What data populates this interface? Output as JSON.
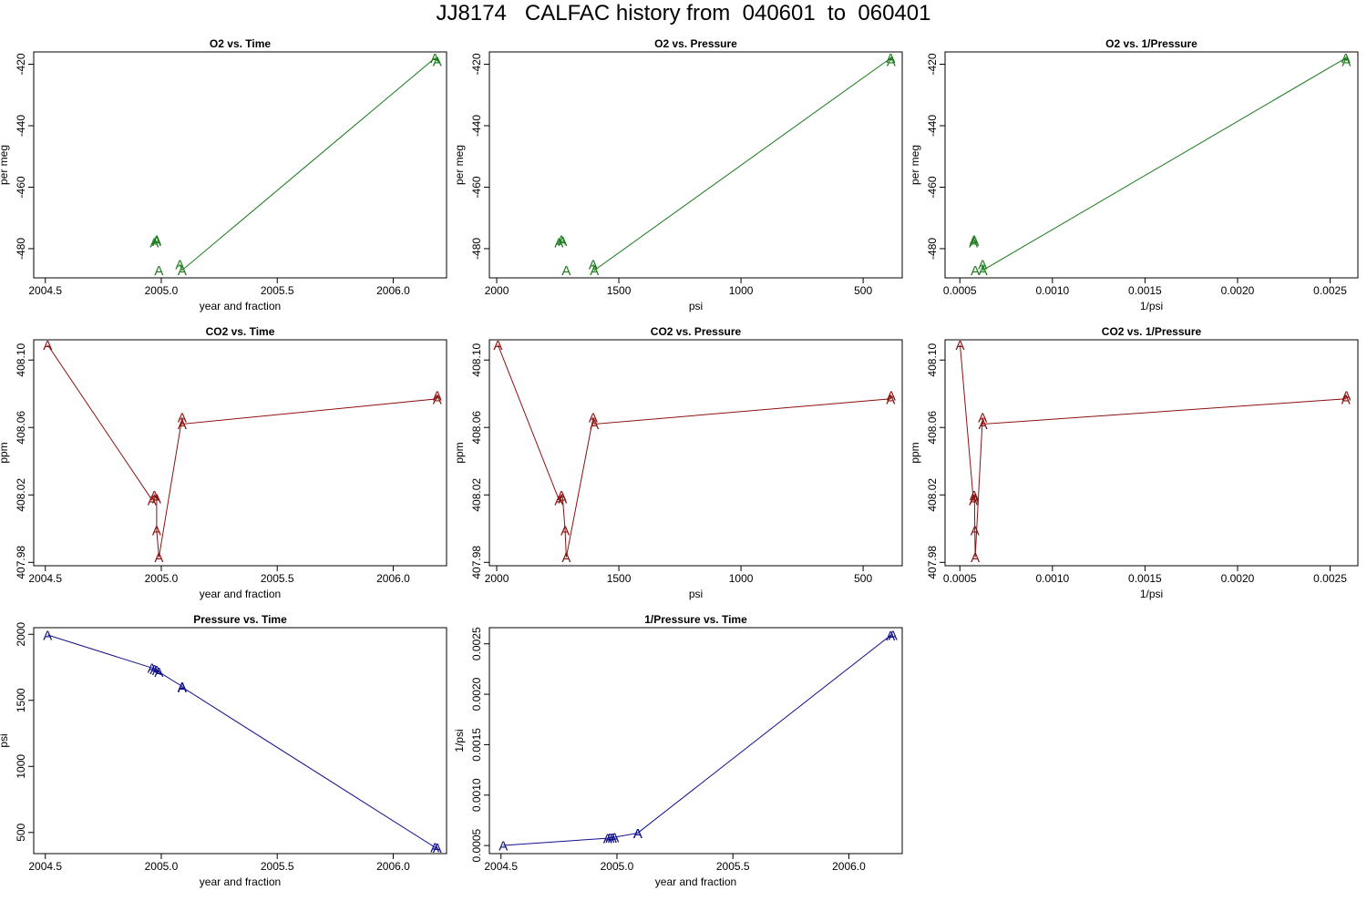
{
  "title": "JJ8174   CALFAC history from  040601  to  060401",
  "colors": {
    "o2": "#1a7a1a",
    "co2": "#8b1010",
    "pressure": "#10108b",
    "axis": "#000000"
  },
  "chart_data": [
    {
      "type": "line",
      "title": "O2 vs. Time",
      "xlabel": "year and fraction",
      "ylabel": "per meg",
      "color_key": "o2",
      "marker": "A",
      "x": [
        2004.97,
        2004.98,
        2004.98,
        2004.99,
        2005.08,
        2005.09,
        2006.18,
        2006.19
      ],
      "y": [
        -478,
        -477,
        -477.5,
        -487,
        -485,
        -487,
        -418,
        -419
      ],
      "xlim": [
        2004.45,
        2006.23
      ],
      "ylim": [
        -489.5,
        -416
      ],
      "xticks": [
        {
          "v": 2004.5,
          "label": "2004.5"
        },
        {
          "v": 2005.0,
          "label": "2005.0"
        },
        {
          "v": 2005.5,
          "label": "2005.5"
        },
        {
          "v": 2006.0,
          "label": "2006.0"
        }
      ],
      "yticks": [
        {
          "v": -420,
          "label": "-420"
        },
        {
          "v": -440,
          "label": "-440"
        },
        {
          "v": -460,
          "label": "-460"
        },
        {
          "v": -480,
          "label": "-480"
        }
      ],
      "line_from": 5
    },
    {
      "type": "line",
      "title": "O2 vs. Pressure",
      "xlabel": "psi",
      "ylabel": "per meg",
      "color_key": "o2",
      "marker": "A",
      "x": [
        1745,
        1735,
        1730,
        1715,
        1605,
        1600,
        387,
        385
      ],
      "y": [
        -478,
        -477,
        -477.5,
        -487,
        -485,
        -487,
        -418,
        -419
      ],
      "xlim": [
        2030,
        340
      ],
      "ylim": [
        -489.5,
        -416
      ],
      "xticks": [
        {
          "v": 2000,
          "label": "2000"
        },
        {
          "v": 1500,
          "label": "1500"
        },
        {
          "v": 1000,
          "label": "1000"
        },
        {
          "v": 500,
          "label": "500"
        }
      ],
      "yticks": [
        {
          "v": -420,
          "label": "-420"
        },
        {
          "v": -440,
          "label": "-440"
        },
        {
          "v": -460,
          "label": "-460"
        },
        {
          "v": -480,
          "label": "-480"
        }
      ],
      "line_from": 5
    },
    {
      "type": "line",
      "title": "O2 vs. 1/Pressure",
      "xlabel": "1/psi",
      "ylabel": "per meg",
      "color_key": "o2",
      "marker": "A",
      "x": [
        0.000573,
        0.000577,
        0.000579,
        0.000583,
        0.000623,
        0.000625,
        0.002585,
        0.002588
      ],
      "y": [
        -478,
        -477,
        -477.5,
        -487,
        -485,
        -487,
        -418,
        -419
      ],
      "xlim": [
        0.00042,
        0.00265
      ],
      "ylim": [
        -489.5,
        -416
      ],
      "xticks": [
        {
          "v": 0.0005,
          "label": "0.0005"
        },
        {
          "v": 0.001,
          "label": "0.0010"
        },
        {
          "v": 0.0015,
          "label": "0.0015"
        },
        {
          "v": 0.002,
          "label": "0.0020"
        },
        {
          "v": 0.0025,
          "label": "0.0025"
        }
      ],
      "yticks": [
        {
          "v": -420,
          "label": "-420"
        },
        {
          "v": -440,
          "label": "-440"
        },
        {
          "v": -460,
          "label": "-460"
        },
        {
          "v": -480,
          "label": "-480"
        }
      ],
      "line_from": 5
    },
    {
      "type": "line",
      "title": "CO2 vs. Time",
      "xlabel": "year and fraction",
      "ylabel": "ppm",
      "color_key": "co2",
      "marker": "A",
      "x": [
        2004.51,
        2004.96,
        2004.97,
        2004.98,
        2004.98,
        2004.99,
        2005.09,
        2005.09,
        2006.19,
        2006.19
      ],
      "y": [
        408.109,
        408.017,
        408.02,
        408.018,
        407.999,
        407.983,
        408.066,
        408.062,
        408.077,
        408.079
      ],
      "xlim": [
        2004.45,
        2006.23
      ],
      "ylim": [
        407.978,
        408.112
      ],
      "xticks": [
        {
          "v": 2004.5,
          "label": "2004.5"
        },
        {
          "v": 2005.0,
          "label": "2005.0"
        },
        {
          "v": 2005.5,
          "label": "2005.5"
        },
        {
          "v": 2006.0,
          "label": "2006.0"
        }
      ],
      "yticks": [
        {
          "v": 407.98,
          "label": "407.98"
        },
        {
          "v": 408.02,
          "label": "408.02"
        },
        {
          "v": 408.06,
          "label": "408.06"
        },
        {
          "v": 408.1,
          "label": "408.10"
        }
      ],
      "line_from": 0
    },
    {
      "type": "line",
      "title": "CO2 vs. Pressure",
      "xlabel": "psi",
      "ylabel": "ppm",
      "color_key": "co2",
      "marker": "A",
      "x": [
        1995,
        1745,
        1735,
        1730,
        1720,
        1715,
        1605,
        1600,
        387,
        385
      ],
      "y": [
        408.109,
        408.017,
        408.02,
        408.018,
        407.999,
        407.983,
        408.066,
        408.062,
        408.077,
        408.079
      ],
      "xlim": [
        2030,
        340
      ],
      "ylim": [
        407.978,
        408.112
      ],
      "xticks": [
        {
          "v": 2000,
          "label": "2000"
        },
        {
          "v": 1500,
          "label": "1500"
        },
        {
          "v": 1000,
          "label": "1000"
        },
        {
          "v": 500,
          "label": "500"
        }
      ],
      "yticks": [
        {
          "v": 407.98,
          "label": "407.98"
        },
        {
          "v": 408.02,
          "label": "408.02"
        },
        {
          "v": 408.06,
          "label": "408.06"
        },
        {
          "v": 408.1,
          "label": "408.10"
        }
      ],
      "line_from": 0
    },
    {
      "type": "line",
      "title": "CO2 vs. 1/Pressure",
      "xlabel": "1/psi",
      "ylabel": "ppm",
      "color_key": "co2",
      "marker": "A",
      "x": [
        0.000501,
        0.000573,
        0.000577,
        0.000579,
        0.000581,
        0.000583,
        0.000623,
        0.000625,
        0.002585,
        0.002588
      ],
      "y": [
        408.109,
        408.017,
        408.02,
        408.018,
        407.999,
        407.983,
        408.066,
        408.062,
        408.077,
        408.079
      ],
      "xlim": [
        0.00042,
        0.00265
      ],
      "ylim": [
        407.978,
        408.112
      ],
      "xticks": [
        {
          "v": 0.0005,
          "label": "0.0005"
        },
        {
          "v": 0.001,
          "label": "0.0010"
        },
        {
          "v": 0.0015,
          "label": "0.0015"
        },
        {
          "v": 0.002,
          "label": "0.0020"
        },
        {
          "v": 0.0025,
          "label": "0.0025"
        }
      ],
      "yticks": [
        {
          "v": 407.98,
          "label": "407.98"
        },
        {
          "v": 408.02,
          "label": "408.02"
        },
        {
          "v": 408.06,
          "label": "408.06"
        },
        {
          "v": 408.1,
          "label": "408.10"
        }
      ],
      "line_from": 0
    },
    {
      "type": "line",
      "title": "Pressure vs. Time",
      "xlabel": "year and fraction",
      "ylabel": "psi",
      "color_key": "pressure",
      "marker": "A",
      "x": [
        2004.51,
        2004.96,
        2004.97,
        2004.98,
        2004.99,
        2005.09,
        2005.09,
        2006.18,
        2006.19
      ],
      "y": [
        1995,
        1745,
        1735,
        1730,
        1715,
        1605,
        1600,
        387,
        385
      ],
      "xlim": [
        2004.45,
        2006.23
      ],
      "ylim": [
        340,
        2050
      ],
      "xticks": [
        {
          "v": 2004.5,
          "label": "2004.5"
        },
        {
          "v": 2005.0,
          "label": "2005.0"
        },
        {
          "v": 2005.5,
          "label": "2005.5"
        },
        {
          "v": 2006.0,
          "label": "2006.0"
        }
      ],
      "yticks": [
        {
          "v": 500,
          "label": "500"
        },
        {
          "v": 1000,
          "label": "1000"
        },
        {
          "v": 1500,
          "label": "1500"
        },
        {
          "v": 2000,
          "label": "2000"
        }
      ],
      "line_from": 0
    },
    {
      "type": "line",
      "title": "1/Pressure vs. Time",
      "xlabel": "year and fraction",
      "ylabel": "1/psi",
      "color_key": "pressure",
      "marker": "A",
      "x": [
        2004.51,
        2004.96,
        2004.97,
        2004.98,
        2004.99,
        2005.09,
        2005.09,
        2006.18,
        2006.19
      ],
      "y": [
        0.000501,
        0.000573,
        0.000577,
        0.000579,
        0.000583,
        0.000623,
        0.000625,
        0.002585,
        0.002588
      ],
      "xlim": [
        2004.45,
        2006.23
      ],
      "ylim": [
        0.00042,
        0.00266
      ],
      "xticks": [
        {
          "v": 2004.5,
          "label": "2004.5"
        },
        {
          "v": 2005.0,
          "label": "2005.0"
        },
        {
          "v": 2005.5,
          "label": "2005.5"
        },
        {
          "v": 2006.0,
          "label": "2006.0"
        }
      ],
      "yticks": [
        {
          "v": 0.0005,
          "label": "0.0005"
        },
        {
          "v": 0.001,
          "label": "0.0010"
        },
        {
          "v": 0.0015,
          "label": "0.0015"
        },
        {
          "v": 0.002,
          "label": "0.0020"
        },
        {
          "v": 0.0025,
          "label": "0.0025"
        }
      ],
      "line_from": 0
    }
  ]
}
